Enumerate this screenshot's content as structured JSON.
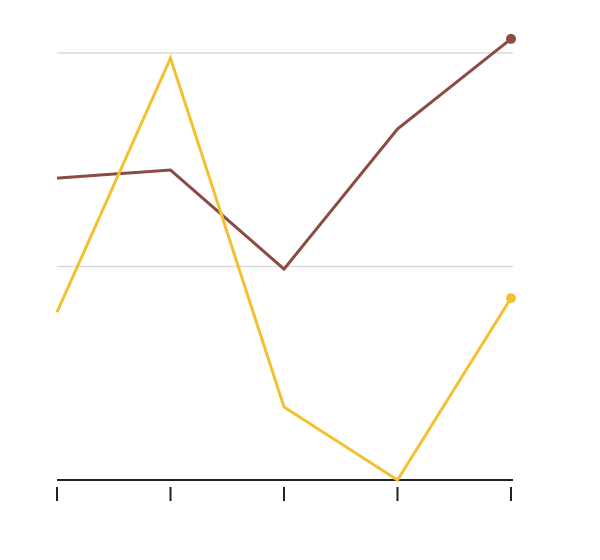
{
  "chart_data": {
    "type": "line",
    "categories": [
      null,
      null,
      null,
      null,
      null
    ],
    "series": [
      {
        "color": "#8b4a42",
        "values": [
          70.7,
          72.6,
          49.4,
          82.2,
          103.3
        ]
      },
      {
        "color": "#f4c030",
        "values": [
          39.3,
          98.8,
          17.1,
          0,
          42.6
        ]
      }
    ],
    "ylim": [
      0,
      105
    ],
    "yticks": [
      0,
      50,
      100
    ],
    "grid": true
  }
}
